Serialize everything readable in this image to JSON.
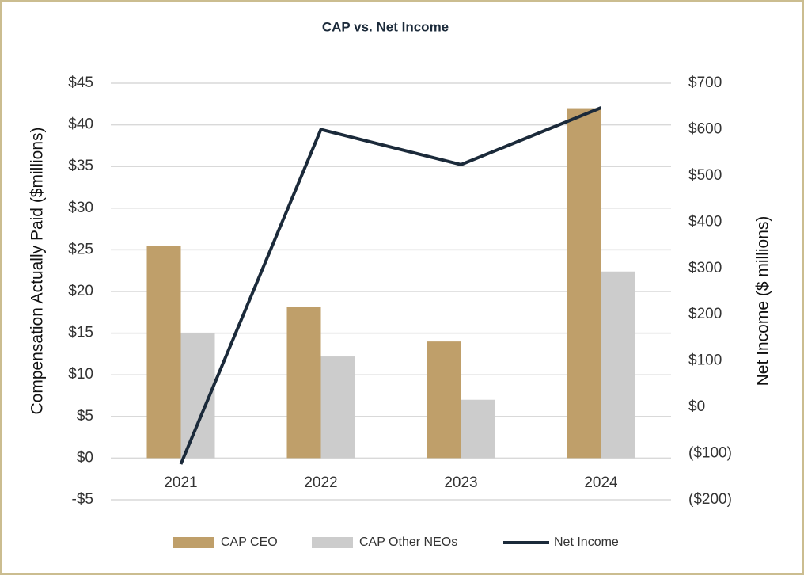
{
  "chart_data": {
    "type": "bar",
    "title": "CAP vs. Net Income",
    "y_label": "Compensation Actually Paid ($millions)",
    "y2_label": "Net Income ($ millions)",
    "categories": [
      "2021",
      "2022",
      "2023",
      "2024"
    ],
    "series": [
      {
        "name": "CAP CEO",
        "type": "bar",
        "color": "#bf9f6a",
        "values": [
          25.5,
          18.1,
          14,
          42
        ]
      },
      {
        "name": "CAP Other NEOs",
        "type": "bar",
        "color": "#cccccc",
        "values": [
          15,
          12.2,
          7,
          22.4
        ]
      },
      {
        "name": "Net Income",
        "type": "line",
        "axis": "y2",
        "color": "#1b2a3a",
        "values": [
          -123,
          600,
          524,
          647
        ]
      }
    ],
    "ylim": [
      -5,
      45
    ],
    "yticks": [
      {
        "value": -5,
        "label": "-$5"
      },
      {
        "value": 0,
        "label": "$0"
      },
      {
        "value": 5,
        "label": "$5"
      },
      {
        "value": 10,
        "label": "$10"
      },
      {
        "value": 15,
        "label": "$15"
      },
      {
        "value": 20,
        "label": "$20"
      },
      {
        "value": 25,
        "label": "$25"
      },
      {
        "value": 30,
        "label": "$30"
      },
      {
        "value": 35,
        "label": "$35"
      },
      {
        "value": 40,
        "label": "$40"
      },
      {
        "value": 45,
        "label": "$45"
      }
    ],
    "y2lim": [
      -200,
      700
    ],
    "y2ticks": [
      {
        "value": -200,
        "label": "($200)"
      },
      {
        "value": -100,
        "label": "($100)"
      },
      {
        "value": 0,
        "label": "$0"
      },
      {
        "value": 100,
        "label": "$100"
      },
      {
        "value": 200,
        "label": "$200"
      },
      {
        "value": 300,
        "label": "$300"
      },
      {
        "value": 400,
        "label": "$400"
      },
      {
        "value": 500,
        "label": "$500"
      },
      {
        "value": 600,
        "label": "$600"
      },
      {
        "value": 700,
        "label": "$700"
      }
    ],
    "grid": true,
    "legend": "bottom"
  }
}
